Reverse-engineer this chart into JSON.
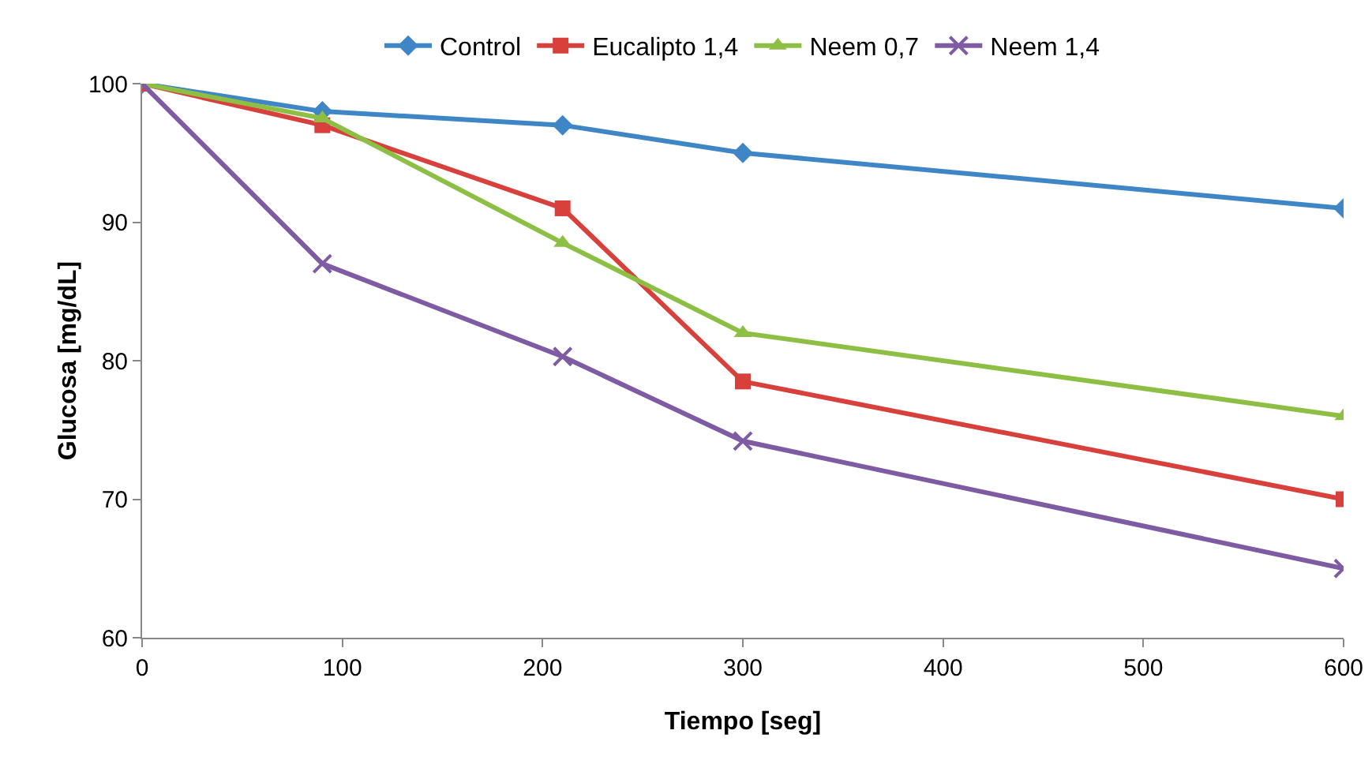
{
  "chart_data": {
    "type": "line",
    "xlabel": "Tiempo [seg]",
    "ylabel": "Glucosa [mg/dL]",
    "x": [
      0,
      90,
      210,
      300,
      600
    ],
    "series": [
      {
        "name": "Control",
        "color": "#3f86c7",
        "marker": "diamond",
        "values": [
          100,
          98,
          97,
          95,
          91
        ]
      },
      {
        "name": "Eucalipto 1,4",
        "color": "#d8403c",
        "marker": "square",
        "values": [
          100,
          97,
          91,
          78.5,
          70
        ]
      },
      {
        "name": "Neem 0,7",
        "color": "#8dbf45",
        "marker": "triangle",
        "values": [
          100,
          97.5,
          88.5,
          82,
          76
        ]
      },
      {
        "name": "Neem 1,4",
        "color": "#7e5ba2",
        "marker": "cross",
        "values": [
          100,
          87,
          80.3,
          74.2,
          65
        ]
      }
    ],
    "xlim": [
      0,
      600
    ],
    "xticks": [
      0,
      100,
      200,
      300,
      400,
      500,
      600
    ],
    "ylim": [
      60,
      100
    ],
    "yticks": [
      60,
      70,
      80,
      90,
      100
    ],
    "grid": false,
    "legend": "top",
    "line_style": "solid"
  }
}
